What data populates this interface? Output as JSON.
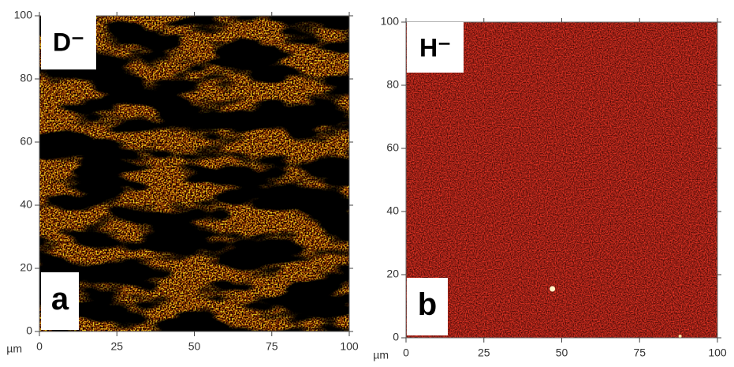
{
  "chart_data": [
    {
      "type": "image",
      "species": "D⁻",
      "panel": "a",
      "x_unit": "µm",
      "xlim": [
        0,
        100
      ],
      "ylim": [
        0,
        100
      ],
      "xticks": [
        0,
        25,
        50,
        75,
        100
      ],
      "yticks": [
        0,
        20,
        40,
        60,
        80,
        100
      ]
    },
    {
      "type": "image",
      "species": "H⁻",
      "panel": "b",
      "x_unit": "µm",
      "xlim": [
        0,
        100
      ],
      "ylim": [
        0,
        100
      ],
      "xticks": [
        0,
        25,
        50,
        75,
        100
      ],
      "yticks": [
        0,
        20,
        40,
        60,
        80,
        100
      ]
    }
  ]
}
